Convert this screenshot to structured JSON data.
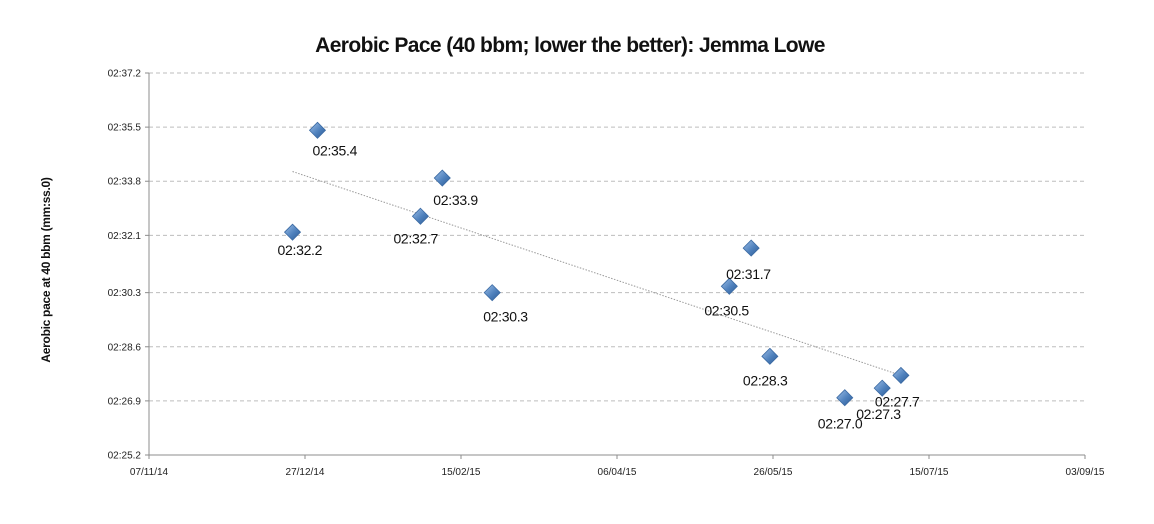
{
  "chart_data": {
    "type": "scatter",
    "title": "Aerobic Pace (40 bbm; lower the better): Jemma Lowe",
    "xlabel": "",
    "ylabel": "Aerobic pace at 40 bbm (mm:ss.0)",
    "x_ticks": [
      "07/11/14",
      "27/12/14",
      "15/02/15",
      "06/04/15",
      "26/05/15",
      "15/07/15",
      "03/09/15"
    ],
    "y_ticks": [
      "02:25.2",
      "02:26.9",
      "02:28.6",
      "02:30.3",
      "02:32.1",
      "02:33.8",
      "02:35.5",
      "02:37.2"
    ],
    "xlim": [
      "07/11/14",
      "03/09/15"
    ],
    "ylim": [
      "02:25.2",
      "02:37.2"
    ],
    "grid": true,
    "trendline": "linear",
    "marker_color": "#4f81bd",
    "points": [
      {
        "x": "23/12/14",
        "y": "02:32.2",
        "label": "02:32.2"
      },
      {
        "x": "31/12/14",
        "y": "02:35.4",
        "label": "02:35.4"
      },
      {
        "x": "02/02/15",
        "y": "02:32.7",
        "label": "02:32.7"
      },
      {
        "x": "09/02/15",
        "y": "02:33.9",
        "label": "02:33.9"
      },
      {
        "x": "25/02/15",
        "y": "02:30.3",
        "label": "02:30.3"
      },
      {
        "x": "12/05/15",
        "y": "02:30.5",
        "label": "02:30.5"
      },
      {
        "x": "19/05/15",
        "y": "02:31.7",
        "label": "02:31.7"
      },
      {
        "x": "25/05/15",
        "y": "02:28.3",
        "label": "02:28.3"
      },
      {
        "x": "18/06/15",
        "y": "02:27.0",
        "label": "02:27.0"
      },
      {
        "x": "30/06/15",
        "y": "02:27.3",
        "label": "02:27.3"
      },
      {
        "x": "06/07/15",
        "y": "02:27.7",
        "label": "02:27.7"
      }
    ]
  }
}
